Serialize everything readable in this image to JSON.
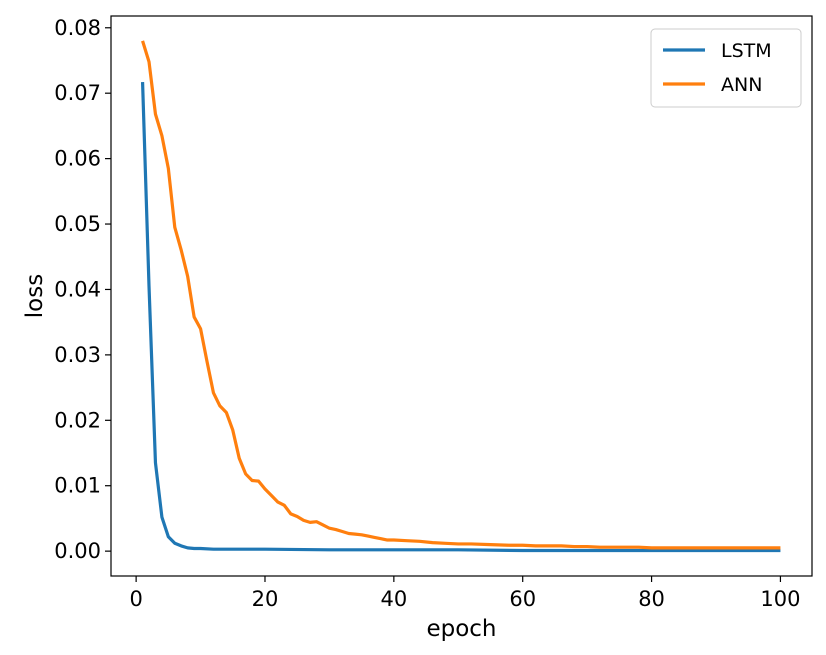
{
  "chart_data": {
    "type": "line",
    "xlabel": "epoch",
    "ylabel": "loss",
    "xlim": [
      -3.9,
      104.9
    ],
    "ylim": [
      -0.0038,
      0.0818
    ],
    "xticks": [
      0,
      20,
      40,
      60,
      80,
      100
    ],
    "yticks": [
      0.0,
      0.01,
      0.02,
      0.03,
      0.04,
      0.05,
      0.06,
      0.07,
      0.08
    ],
    "ytick_labels": [
      "0.00",
      "0.01",
      "0.02",
      "0.03",
      "0.04",
      "0.05",
      "0.06",
      "0.07",
      "0.08"
    ],
    "legend_position": "top-right",
    "grid": false,
    "series": [
      {
        "name": "LSTM",
        "color": "#1f77b4",
        "x": [
          1,
          2,
          3,
          4,
          5,
          6,
          7,
          8,
          9,
          10,
          12,
          15,
          20,
          30,
          40,
          50,
          60,
          70,
          80,
          90,
          100
        ],
        "y": [
          0.0717,
          0.0405,
          0.0135,
          0.0052,
          0.0022,
          0.0012,
          0.0008,
          0.0005,
          0.0004,
          0.0004,
          0.0003,
          0.0003,
          0.0003,
          0.0002,
          0.0002,
          0.0002,
          0.0001,
          0.0001,
          0.0001,
          0.0001,
          0.0001
        ]
      },
      {
        "name": "ANN",
        "color": "#ff7f0e",
        "x": [
          1,
          2,
          3,
          4,
          5,
          6,
          7,
          8,
          9,
          10,
          11,
          12,
          13,
          14,
          15,
          16,
          17,
          18,
          19,
          20,
          21,
          22,
          23,
          24,
          25,
          26,
          27,
          28,
          29,
          30,
          31,
          32,
          33,
          34,
          35,
          36,
          37,
          38,
          39,
          40,
          42,
          44,
          46,
          48,
          50,
          52,
          55,
          58,
          60,
          62,
          64,
          66,
          68,
          70,
          72,
          75,
          78,
          80,
          85,
          90,
          95,
          100
        ],
        "y": [
          0.078,
          0.0748,
          0.0668,
          0.0635,
          0.0585,
          0.0495,
          0.046,
          0.042,
          0.0358,
          0.034,
          0.029,
          0.0242,
          0.0222,
          0.0212,
          0.0185,
          0.0142,
          0.0118,
          0.0108,
          0.0107,
          0.0095,
          0.0085,
          0.0075,
          0.007,
          0.0057,
          0.0053,
          0.0047,
          0.0044,
          0.0045,
          0.004,
          0.0035,
          0.0033,
          0.003,
          0.0027,
          0.0026,
          0.0025,
          0.0023,
          0.0021,
          0.0019,
          0.0017,
          0.0017,
          0.0016,
          0.0015,
          0.0013,
          0.0012,
          0.0011,
          0.0011,
          0.001,
          0.0009,
          0.0009,
          0.0008,
          0.0008,
          0.0008,
          0.0007,
          0.0007,
          0.0006,
          0.0006,
          0.0006,
          0.0005,
          0.0005,
          0.0005,
          0.0005,
          0.0005
        ]
      }
    ]
  }
}
